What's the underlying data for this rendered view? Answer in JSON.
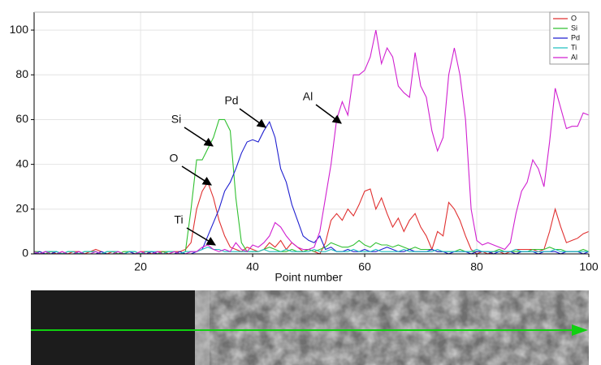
{
  "chart_data": {
    "type": "line",
    "x_label": "Point number",
    "x": [
      1,
      2,
      3,
      4,
      5,
      6,
      7,
      8,
      9,
      10,
      11,
      12,
      13,
      14,
      15,
      16,
      17,
      18,
      19,
      20,
      21,
      22,
      23,
      24,
      25,
      26,
      27,
      28,
      29,
      30,
      31,
      32,
      33,
      34,
      35,
      36,
      37,
      38,
      39,
      40,
      41,
      42,
      43,
      44,
      45,
      46,
      47,
      48,
      49,
      50,
      51,
      52,
      53,
      54,
      55,
      56,
      57,
      58,
      59,
      60,
      61,
      62,
      63,
      64,
      65,
      66,
      67,
      68,
      69,
      70,
      71,
      72,
      73,
      74,
      75,
      76,
      77,
      78,
      79,
      80,
      81,
      82,
      83,
      84,
      85,
      86,
      87,
      88,
      89,
      90,
      91,
      92,
      93,
      94,
      95,
      96,
      97,
      98,
      99,
      100
    ],
    "xlim": [
      1,
      100
    ],
    "xticks": [
      20,
      40,
      60,
      80,
      100
    ],
    "ylim": [
      0,
      108
    ],
    "yticks": [
      0,
      20,
      40,
      60,
      80,
      100
    ],
    "grid": true,
    "legend": "top-right",
    "series": [
      {
        "name": "O",
        "color": "#e03030",
        "values": [
          1,
          0,
          1,
          1,
          0,
          1,
          0,
          1,
          1,
          0,
          1,
          2,
          1,
          0,
          1,
          1,
          0,
          1,
          0,
          1,
          1,
          0,
          1,
          1,
          0,
          1,
          1,
          2,
          5,
          20,
          28,
          32,
          25,
          15,
          8,
          3,
          2,
          1,
          3,
          2,
          1,
          2,
          5,
          3,
          6,
          2,
          5,
          3,
          1,
          2,
          1,
          0,
          5,
          15,
          18,
          15,
          20,
          17,
          22,
          28,
          29,
          20,
          25,
          18,
          12,
          16,
          10,
          15,
          18,
          12,
          8,
          2,
          10,
          8,
          23,
          20,
          15,
          8,
          2,
          0,
          1,
          0,
          1,
          1,
          0,
          1,
          2,
          2,
          2,
          2,
          1,
          2,
          10,
          20,
          12,
          5,
          6,
          7,
          9,
          10
        ]
      },
      {
        "name": "Si",
        "color": "#30c030",
        "values": [
          1,
          1,
          0,
          1,
          1,
          0,
          1,
          1,
          0,
          1,
          1,
          1,
          0,
          1,
          1,
          0,
          1,
          1,
          1,
          0,
          1,
          1,
          0,
          1,
          1,
          1,
          0,
          1,
          20,
          42,
          42,
          47,
          52,
          60,
          60,
          55,
          25,
          5,
          1,
          1,
          1,
          2,
          3,
          2,
          1,
          1,
          2,
          1,
          1,
          2,
          1,
          2,
          3,
          5,
          4,
          3,
          3,
          4,
          6,
          4,
          3,
          5,
          4,
          4,
          3,
          4,
          3,
          2,
          3,
          2,
          2,
          2,
          1,
          1,
          1,
          1,
          2,
          1,
          1,
          1,
          1,
          1,
          1,
          2,
          1,
          1,
          1,
          1,
          1,
          2,
          2,
          2,
          3,
          2,
          2,
          1,
          1,
          1,
          2,
          1
        ]
      },
      {
        "name": "Pd",
        "color": "#2020d0",
        "values": [
          0,
          1,
          0,
          0,
          1,
          0,
          0,
          0,
          1,
          0,
          0,
          0,
          1,
          0,
          0,
          0,
          0,
          1,
          0,
          0,
          0,
          1,
          0,
          0,
          0,
          0,
          1,
          0,
          0,
          1,
          2,
          8,
          14,
          20,
          28,
          32,
          38,
          45,
          50,
          51,
          50,
          55,
          59,
          52,
          38,
          32,
          22,
          15,
          8,
          6,
          5,
          8,
          2,
          3,
          1,
          1,
          2,
          1,
          1,
          2,
          1,
          1,
          2,
          3,
          2,
          1,
          1,
          2,
          1,
          1,
          1,
          2,
          1,
          1,
          0,
          1,
          1,
          1,
          0,
          1,
          1,
          1,
          0,
          1,
          1,
          1,
          0,
          1,
          1,
          1,
          0,
          1,
          1,
          1,
          0,
          1,
          1,
          1,
          0,
          1
        ]
      },
      {
        "name": "Ti",
        "color": "#20c0c0",
        "values": [
          1,
          0,
          1,
          1,
          1,
          0,
          1,
          1,
          0,
          1,
          1,
          1,
          0,
          1,
          1,
          1,
          0,
          1,
          1,
          0,
          1,
          1,
          1,
          0,
          1,
          1,
          0,
          1,
          1,
          1,
          2,
          3,
          2,
          2,
          1,
          1,
          1,
          1,
          1,
          1,
          1,
          2,
          1,
          1,
          1,
          2,
          1,
          1,
          1,
          1,
          2,
          1,
          1,
          2,
          1,
          1,
          1,
          2,
          1,
          1,
          1,
          2,
          1,
          1,
          1,
          1,
          2,
          1,
          1,
          1,
          1,
          1,
          2,
          1,
          1,
          1,
          1,
          1,
          1,
          2,
          1,
          1,
          1,
          1,
          1,
          1,
          2,
          1,
          1,
          1,
          1,
          1,
          1,
          2,
          1,
          1,
          1,
          1,
          1,
          1
        ]
      },
      {
        "name": "Al",
        "color": "#d020d0",
        "values": [
          1,
          0,
          1,
          0,
          0,
          1,
          0,
          0,
          1,
          0,
          0,
          1,
          0,
          0,
          0,
          1,
          0,
          0,
          0,
          1,
          0,
          0,
          1,
          0,
          0,
          1,
          0,
          0,
          1,
          1,
          3,
          4,
          2,
          1,
          2,
          1,
          5,
          2,
          1,
          4,
          3,
          5,
          8,
          14,
          12,
          8,
          5,
          3,
          2,
          2,
          3,
          10,
          25,
          40,
          60,
          68,
          62,
          80,
          80,
          82,
          88,
          100,
          85,
          92,
          88,
          75,
          72,
          70,
          90,
          75,
          70,
          55,
          46,
          52,
          80,
          92,
          80,
          60,
          20,
          6,
          4,
          5,
          4,
          3,
          2,
          5,
          18,
          28,
          32,
          42,
          38,
          30,
          50,
          74,
          65,
          56,
          57,
          57,
          63,
          62
        ]
      }
    ],
    "annotations": [
      "Si",
      "Pd",
      "Al",
      "O",
      "Ti"
    ]
  }
}
